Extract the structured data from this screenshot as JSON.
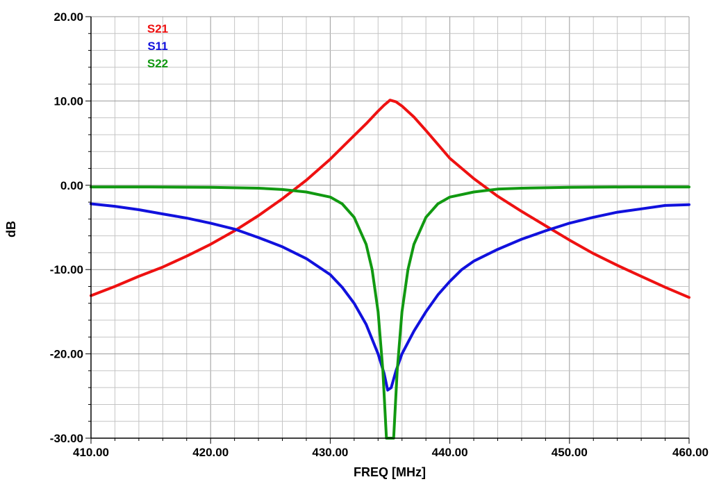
{
  "chart_data": {
    "type": "line",
    "xlabel": "FREQ [MHz]",
    "ylabel": "dB",
    "xlim": [
      410,
      460
    ],
    "ylim": [
      -30,
      20
    ],
    "x_ticks": [
      "410.00",
      "420.00",
      "430.00",
      "440.00",
      "450.00",
      "460.00"
    ],
    "y_ticks": [
      "20.00",
      "10.00",
      "0.00",
      "-10.00",
      "-20.00",
      "-30.00"
    ],
    "grid": true,
    "legend_position": "top-left",
    "series": [
      {
        "name": "S21",
        "color": "#ee1111",
        "points": [
          [
            410,
            -13.1
          ],
          [
            412,
            -12.0
          ],
          [
            414,
            -10.8
          ],
          [
            416,
            -9.7
          ],
          [
            418,
            -8.4
          ],
          [
            420,
            -7.0
          ],
          [
            422,
            -5.4
          ],
          [
            424,
            -3.6
          ],
          [
            426,
            -1.6
          ],
          [
            428,
            0.6
          ],
          [
            430,
            3.1
          ],
          [
            432,
            5.9
          ],
          [
            433,
            7.3
          ],
          [
            434,
            8.8
          ],
          [
            434.5,
            9.5
          ],
          [
            435,
            10.1
          ],
          [
            435.5,
            9.9
          ],
          [
            436,
            9.4
          ],
          [
            437,
            8.1
          ],
          [
            438,
            6.5
          ],
          [
            440,
            3.2
          ],
          [
            442,
            0.8
          ],
          [
            444,
            -1.3
          ],
          [
            446,
            -3.1
          ],
          [
            448,
            -4.8
          ],
          [
            450,
            -6.5
          ],
          [
            452,
            -8.1
          ],
          [
            454,
            -9.5
          ],
          [
            456,
            -10.8
          ],
          [
            458,
            -12.1
          ],
          [
            460,
            -13.3
          ]
        ]
      },
      {
        "name": "S11",
        "color": "#1111dd",
        "points": [
          [
            410,
            -2.2
          ],
          [
            412,
            -2.5
          ],
          [
            414,
            -2.9
          ],
          [
            416,
            -3.4
          ],
          [
            418,
            -3.9
          ],
          [
            420,
            -4.5
          ],
          [
            422,
            -5.2
          ],
          [
            424,
            -6.2
          ],
          [
            426,
            -7.3
          ],
          [
            428,
            -8.7
          ],
          [
            430,
            -10.6
          ],
          [
            431,
            -12.1
          ],
          [
            432,
            -14.0
          ],
          [
            433,
            -16.5
          ],
          [
            434,
            -20.0
          ],
          [
            434.5,
            -22.3
          ],
          [
            434.8,
            -24.3
          ],
          [
            435.1,
            -24.0
          ],
          [
            435.5,
            -22.0
          ],
          [
            436,
            -20.0
          ],
          [
            437,
            -17.3
          ],
          [
            438,
            -15.0
          ],
          [
            439,
            -13.0
          ],
          [
            440,
            -11.4
          ],
          [
            441,
            -10.0
          ],
          [
            442,
            -9.0
          ],
          [
            444,
            -7.6
          ],
          [
            446,
            -6.4
          ],
          [
            448,
            -5.4
          ],
          [
            450,
            -4.5
          ],
          [
            452,
            -3.8
          ],
          [
            454,
            -3.2
          ],
          [
            456,
            -2.8
          ],
          [
            458,
            -2.4
          ],
          [
            460,
            -2.3
          ]
        ]
      },
      {
        "name": "S22",
        "color": "#119911",
        "points": [
          [
            410,
            -0.2
          ],
          [
            415,
            -0.2
          ],
          [
            420,
            -0.25
          ],
          [
            424,
            -0.35
          ],
          [
            426,
            -0.5
          ],
          [
            428,
            -0.8
          ],
          [
            430,
            -1.4
          ],
          [
            431,
            -2.2
          ],
          [
            432,
            -3.8
          ],
          [
            433,
            -7.0
          ],
          [
            433.5,
            -10.0
          ],
          [
            434,
            -15.0
          ],
          [
            434.4,
            -22.0
          ],
          [
            434.7,
            -30.0
          ],
          [
            435,
            -30.0
          ],
          [
            435.3,
            -30.0
          ],
          [
            435.6,
            -22.0
          ],
          [
            436,
            -15.0
          ],
          [
            436.5,
            -10.0
          ],
          [
            437,
            -7.0
          ],
          [
            438,
            -3.8
          ],
          [
            439,
            -2.2
          ],
          [
            440,
            -1.4
          ],
          [
            442,
            -0.8
          ],
          [
            444,
            -0.45
          ],
          [
            446,
            -0.35
          ],
          [
            450,
            -0.25
          ],
          [
            455,
            -0.2
          ],
          [
            460,
            -0.2
          ]
        ]
      }
    ]
  }
}
